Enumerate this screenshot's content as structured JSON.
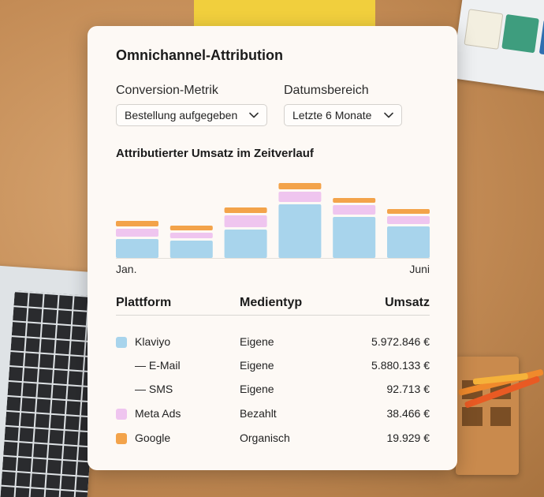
{
  "card": {
    "title": "Omnichannel-Attribution",
    "conversion": {
      "label": "Conversion-Metrik",
      "value": "Bestellung aufgegeben"
    },
    "date_range": {
      "label": "Datumsbereich",
      "value": "Letzte 6 Monate"
    }
  },
  "chart_data": {
    "type": "bar",
    "title": "Attributierter Umsatz im Zeitverlauf",
    "stacked": true,
    "x_start_label": "Jan.",
    "x_end_label": "Juni",
    "categories": [
      "Jan.",
      "",
      "",
      "",
      "",
      "Juni"
    ],
    "series": [
      {
        "name": "Klaviyo",
        "color": "#a8d4ec",
        "values": [
          24,
          22,
          36,
          68,
          52,
          40
        ]
      },
      {
        "name": "Meta Ads",
        "color": "#efc5ef",
        "values": [
          10,
          7,
          15,
          13,
          12,
          10
        ]
      },
      {
        "name": "Google",
        "color": "#f3a34a",
        "values": [
          7,
          6,
          7,
          8,
          6,
          6
        ]
      }
    ],
    "ylim": [
      0,
      100
    ],
    "grid": false,
    "legend": "none"
  },
  "table": {
    "headers": {
      "platform": "Plattform",
      "media_type": "Medientyp",
      "revenue": "Umsatz"
    },
    "rows": [
      {
        "platform": "Klaviyo",
        "media_type": "Eigene",
        "revenue": "5.972.846 €",
        "color": "#a8d4ec",
        "indent": false
      },
      {
        "platform": "— E-Mail",
        "media_type": "Eigene",
        "revenue": "5.880.133 €",
        "indent": true
      },
      {
        "platform": "— SMS",
        "media_type": "Eigene",
        "revenue": "92.713 €",
        "indent": true
      },
      {
        "platform": "Meta Ads",
        "media_type": "Bezahlt",
        "revenue": "38.466 €",
        "color": "#efc5ef",
        "indent": false
      },
      {
        "platform": "Google",
        "media_type": "Organisch",
        "revenue": "19.929 €",
        "color": "#f3a34a",
        "indent": false
      }
    ]
  }
}
